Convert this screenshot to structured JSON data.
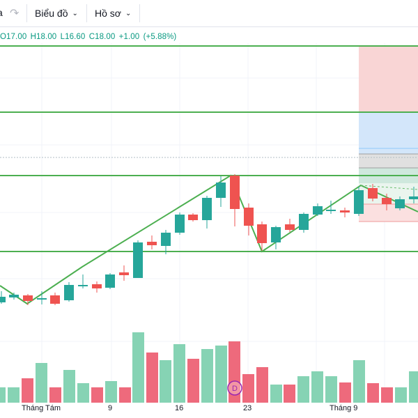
{
  "toolbar": {
    "partial_label": "a",
    "redo_icon": "redo-icon",
    "chart_menu_label": "Biểu đồ",
    "profile_menu_label": "Hồ sơ",
    "chevron_icon": "chevron-down-icon"
  },
  "legend": {
    "open": "O17.00",
    "high": "H18.00",
    "low": "L16.60",
    "close": "C18.00",
    "change": "+1.00",
    "change_pct": "(+5.88%)"
  },
  "colors": {
    "up": "#26a69a",
    "down": "#ef5350",
    "up_volume": "#86d3b4",
    "down_volume": "#ee6a7c",
    "trendline": "#4caf50",
    "grid": "#f0f3fa"
  },
  "volume_marker": "D",
  "x_axis_labels": [
    "Tháng Tám",
    "9",
    "16",
    "23",
    "Tháng 9"
  ]
}
